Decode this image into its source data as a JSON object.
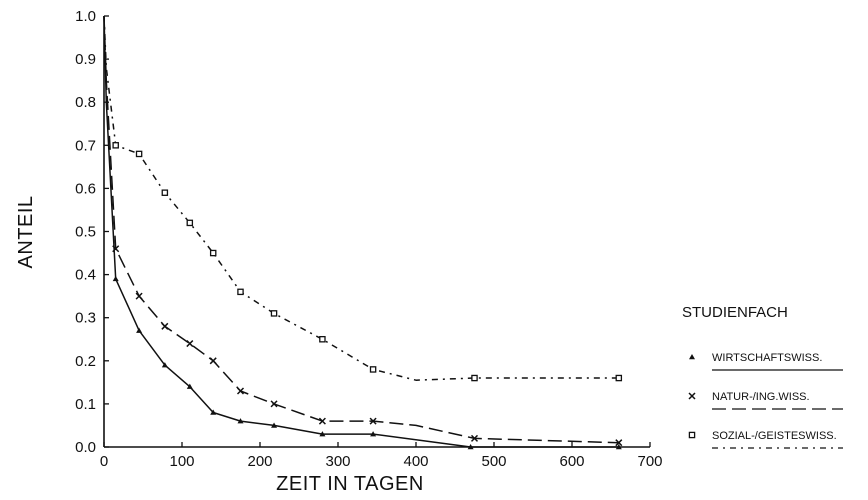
{
  "chart_data": {
    "type": "line",
    "title": "",
    "xlabel": "ZEIT IN TAGEN",
    "ylabel": "ANTEIL",
    "xlim": [
      0,
      700
    ],
    "ylim": [
      0,
      1.0
    ],
    "xticks": [
      "0",
      "100",
      "200",
      "300",
      "400",
      "500",
      "600",
      "700"
    ],
    "yticks": [
      "0.0",
      "0.1",
      "0.2",
      "0.3",
      "0.4",
      "0.5",
      "0.6",
      "0.7",
      "0.8",
      "0.9",
      "1.0"
    ],
    "grid": false,
    "legend": {
      "title": "STUDIENFACH",
      "placement": "right"
    },
    "series": [
      {
        "name": "WIRTSCHAFTSWISS.",
        "marker": "triangle",
        "line_style": "solid",
        "points": [
          [
            0,
            1.0
          ],
          [
            3,
            0.8
          ],
          [
            15,
            0.39
          ],
          [
            45,
            0.27
          ],
          [
            78,
            0.19
          ],
          [
            110,
            0.14
          ],
          [
            140,
            0.08
          ],
          [
            175,
            0.06
          ],
          [
            218,
            0.05
          ],
          [
            280,
            0.03
          ],
          [
            345,
            0.03
          ],
          [
            470,
            0.0
          ],
          [
            660,
            0.0
          ]
        ],
        "marked_points": [
          [
            15,
            0.39
          ],
          [
            45,
            0.27
          ],
          [
            78,
            0.19
          ],
          [
            110,
            0.14
          ],
          [
            140,
            0.08
          ],
          [
            175,
            0.06
          ],
          [
            218,
            0.05
          ],
          [
            280,
            0.03
          ],
          [
            345,
            0.03
          ],
          [
            470,
            0.0
          ],
          [
            660,
            0.0
          ]
        ]
      },
      {
        "name": "NATUR-/ING.WISS.",
        "marker": "x",
        "line_style": "dashed",
        "points": [
          [
            0,
            1.0
          ],
          [
            3,
            0.85
          ],
          [
            15,
            0.46
          ],
          [
            45,
            0.35
          ],
          [
            78,
            0.28
          ],
          [
            110,
            0.24
          ],
          [
            140,
            0.2
          ],
          [
            175,
            0.13
          ],
          [
            218,
            0.1
          ],
          [
            280,
            0.06
          ],
          [
            345,
            0.06
          ],
          [
            400,
            0.05
          ],
          [
            475,
            0.02
          ],
          [
            660,
            0.01
          ]
        ],
        "marked_points": [
          [
            15,
            0.46
          ],
          [
            45,
            0.35
          ],
          [
            78,
            0.28
          ],
          [
            110,
            0.24
          ],
          [
            140,
            0.2
          ],
          [
            175,
            0.13
          ],
          [
            218,
            0.1
          ],
          [
            280,
            0.06
          ],
          [
            345,
            0.06
          ],
          [
            475,
            0.02
          ],
          [
            660,
            0.01
          ]
        ]
      },
      {
        "name": "SOZIAL-/GEISTESWISS.",
        "marker": "square",
        "line_style": "dashdot",
        "points": [
          [
            0,
            1.0
          ],
          [
            3,
            0.88
          ],
          [
            15,
            0.7
          ],
          [
            45,
            0.68
          ],
          [
            78,
            0.59
          ],
          [
            110,
            0.52
          ],
          [
            140,
            0.45
          ],
          [
            175,
            0.36
          ],
          [
            218,
            0.31
          ],
          [
            280,
            0.25
          ],
          [
            345,
            0.18
          ],
          [
            400,
            0.155
          ],
          [
            475,
            0.16
          ],
          [
            660,
            0.16
          ]
        ],
        "marked_points": [
          [
            15,
            0.7
          ],
          [
            45,
            0.68
          ],
          [
            78,
            0.59
          ],
          [
            110,
            0.52
          ],
          [
            140,
            0.45
          ],
          [
            175,
            0.36
          ],
          [
            218,
            0.31
          ],
          [
            280,
            0.25
          ],
          [
            345,
            0.18
          ],
          [
            475,
            0.16
          ],
          [
            660,
            0.16
          ]
        ]
      }
    ]
  }
}
